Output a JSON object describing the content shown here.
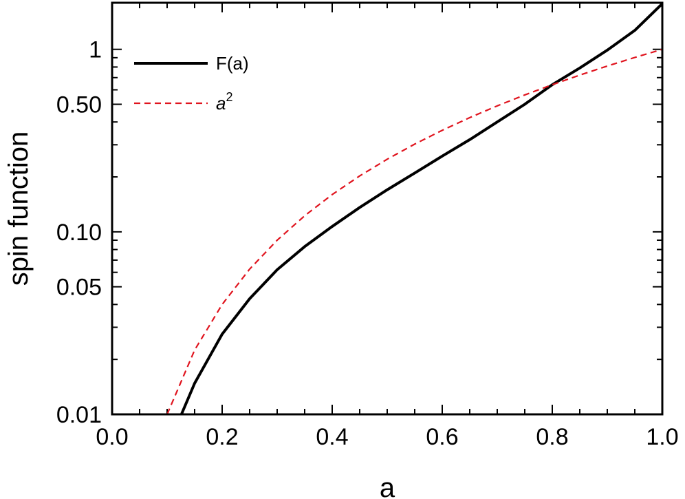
{
  "chart_data": {
    "type": "line",
    "title": "",
    "xlabel": "a",
    "ylabel": "spin function",
    "xlim": [
      0.0,
      1.0
    ],
    "ylim": [
      0.01,
      1.8
    ],
    "yscale": "log",
    "grid": false,
    "legend_position": "top-left",
    "x_ticks": [
      {
        "value": 0.0,
        "label": "0.0"
      },
      {
        "value": 0.2,
        "label": "0.2"
      },
      {
        "value": 0.4,
        "label": "0.4"
      },
      {
        "value": 0.6,
        "label": "0.6"
      },
      {
        "value": 0.8,
        "label": "0.8"
      },
      {
        "value": 1.0,
        "label": "1.0"
      }
    ],
    "y_ticks": [
      {
        "value": 0.01,
        "label": "0.01"
      },
      {
        "value": 0.05,
        "label": "0.05"
      },
      {
        "value": 0.1,
        "label": "0.10"
      },
      {
        "value": 0.5,
        "label": "0.50"
      },
      {
        "value": 1.0,
        "label": "1"
      }
    ],
    "series": [
      {
        "name": "F(a)",
        "color": "#000000",
        "style": "solid",
        "x": [
          0.126,
          0.15,
          0.2,
          0.25,
          0.3,
          0.35,
          0.4,
          0.45,
          0.5,
          0.55,
          0.6,
          0.65,
          0.7,
          0.75,
          0.8,
          0.85,
          0.9,
          0.95,
          1.0
        ],
        "y": [
          0.01,
          0.0148,
          0.0275,
          0.043,
          0.062,
          0.083,
          0.107,
          0.136,
          0.17,
          0.21,
          0.26,
          0.32,
          0.4,
          0.5,
          0.64,
          0.79,
          0.99,
          1.27,
          1.78
        ]
      },
      {
        "name": "a²",
        "color": "#e0141e",
        "style": "dashed",
        "x": [
          0.1,
          0.15,
          0.2,
          0.25,
          0.3,
          0.35,
          0.4,
          0.45,
          0.5,
          0.55,
          0.6,
          0.65,
          0.7,
          0.75,
          0.8,
          0.85,
          0.9,
          0.95,
          1.0
        ],
        "y": [
          0.01,
          0.0225,
          0.04,
          0.0625,
          0.09,
          0.1225,
          0.16,
          0.2025,
          0.25,
          0.3025,
          0.36,
          0.4225,
          0.49,
          0.5625,
          0.64,
          0.7225,
          0.81,
          0.9025,
          1.0
        ]
      }
    ],
    "legend": [
      {
        "label": "F(a)",
        "base": "F(a)",
        "sup": "",
        "italic": false,
        "color": "#000000",
        "style": "solid"
      },
      {
        "label": "a²",
        "base": "a",
        "sup": "2",
        "italic": true,
        "color": "#e0141e",
        "style": "dashed"
      }
    ]
  }
}
